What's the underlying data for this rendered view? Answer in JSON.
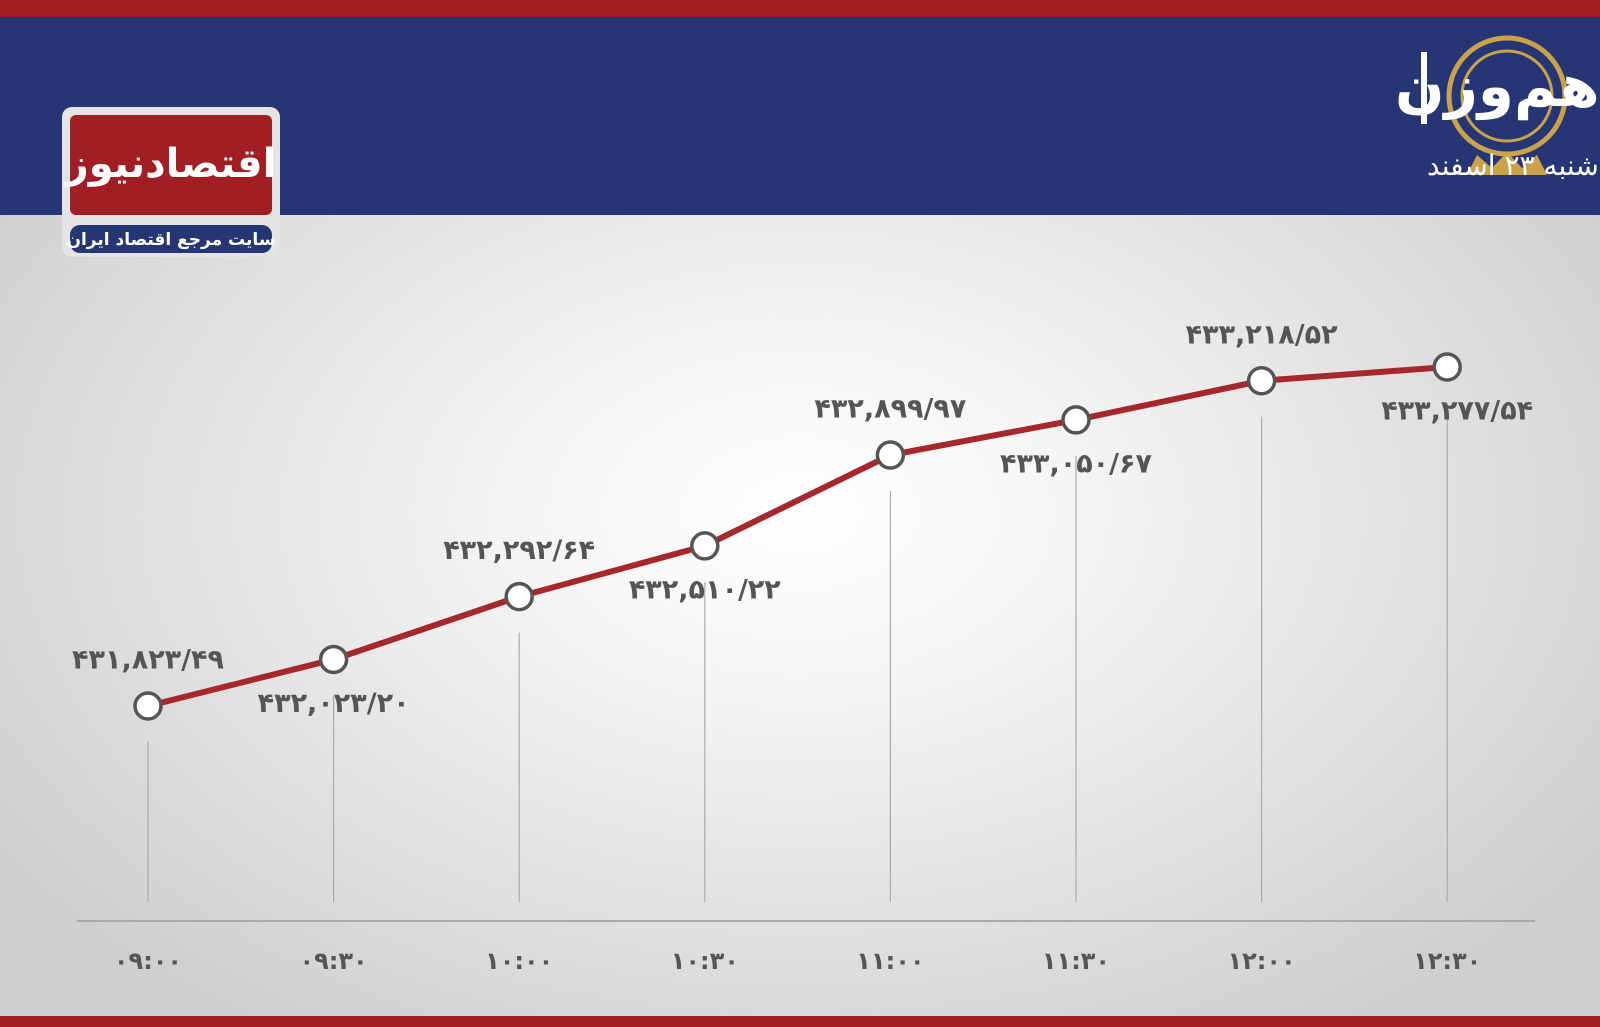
{
  "brand": {
    "name": "اقتصادنیوز",
    "tagline": "سایت مرجع اقتصاد ایران"
  },
  "chart_data": {
    "type": "line",
    "title": "روند شاخص کل هم‌وزن",
    "subtitle": "شنبه ۲۳ اسفند",
    "categories": [
      "۰۹:۰۰",
      "۰۹:۳۰",
      "۱۰:۰۰",
      "۱۰:۳۰",
      "۱۱:۰۰",
      "۱۱:۳۰",
      "۱۲:۰۰",
      "۱۲:۳۰"
    ],
    "values": [
      431823.49,
      432023.2,
      432292.64,
      432510.22,
      432899.97,
      433050.67,
      433218.52,
      433277.54
    ],
    "value_labels": [
      "۴۳۱,۸۲۳/۴۹",
      "۴۳۲,۰۲۳/۲۰",
      "۴۳۲,۲۹۲/۶۴",
      "۴۳۲,۵۱۰/۲۲",
      "۴۳۲,۸۹۹/۹۷",
      "۴۳۳,۰۵۰/۶۷",
      "۴۳۳,۲۱۸/۵۲",
      "۴۳۳,۲۷۷/۵۴"
    ],
    "color": "#a6272c"
  }
}
